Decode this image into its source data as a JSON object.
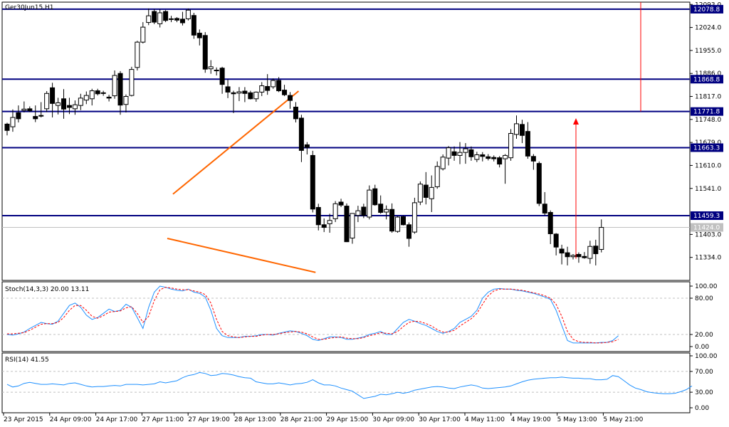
{
  "chart_data": [
    {
      "type": "candlestick",
      "title": "Ger30Jun15,H1",
      "ylim": [
        11265,
        12100
      ],
      "y_ticks": [
        "12093.0",
        "12024.0",
        "11955.0",
        "11886.0",
        "11817.0",
        "11748.0",
        "11679.0",
        "11610.0",
        "11541.0",
        "11403.0",
        "11334.0"
      ],
      "x_ticks": [
        "23 Apr 2015",
        "24 Apr 09:00",
        "24 Apr 17:00",
        "27 Apr 11:00",
        "27 Apr 19:00",
        "28 Apr 13:00",
        "28 Apr 21:00",
        "29 Apr 15:00",
        "30 Apr 09:00",
        "30 Apr 17:00",
        "4 May 11:00",
        "4 May 19:00",
        "5 May 13:00",
        "5 May 21:00"
      ],
      "levels": [
        {
          "value": 12078.8,
          "label": "12078.8"
        },
        {
          "value": 11868.8,
          "label": "11868.8"
        },
        {
          "value": 11771.8,
          "label": "11771.8"
        },
        {
          "value": 11663.3,
          "label": "11663.3"
        },
        {
          "value": 11459.3,
          "label": "11459.3"
        }
      ],
      "current_price": "11424.0",
      "colors": {
        "level": "#000080",
        "trend": "#ff6600",
        "arrow": "#ff0000",
        "grid": "#c0c0c0"
      },
      "trendlines": [
        {
          "from": [
            29.3,
            11524
          ],
          "to": [
            51.5,
            11833
          ]
        },
        {
          "from": [
            28.3,
            11391
          ],
          "to": [
            54.5,
            11289
          ]
        }
      ],
      "candles": [
        [
          11734,
          11738,
          11700,
          11715
        ],
        [
          11726,
          11778,
          11711,
          11754
        ],
        [
          11768,
          11790,
          11739,
          11750
        ],
        [
          11775,
          11802,
          11769,
          11779
        ],
        [
          11780,
          11787,
          11770,
          11774
        ],
        [
          11757,
          11790,
          11740,
          11750
        ],
        [
          11760,
          11800,
          11754,
          11760
        ],
        [
          11780,
          11833,
          11770,
          11826
        ],
        [
          11843,
          11858,
          11754,
          11796
        ],
        [
          11790,
          11813,
          11763,
          11798
        ],
        [
          11810,
          11839,
          11750,
          11779
        ],
        [
          11790,
          11813,
          11764,
          11784
        ],
        [
          11780,
          11805,
          11762,
          11792
        ],
        [
          11790,
          11825,
          11776,
          11812
        ],
        [
          11806,
          11832,
          11794,
          11820
        ],
        [
          11810,
          11840,
          11790,
          11834
        ],
        [
          11834,
          11840,
          11820,
          11825
        ],
        [
          11828,
          11834,
          11819,
          11826
        ],
        [
          11815,
          11822,
          11802,
          11812
        ],
        [
          11819,
          11895,
          11810,
          11880
        ],
        [
          11886,
          11893,
          11762,
          11791
        ],
        [
          11793,
          11823,
          11769,
          11817
        ],
        [
          11820,
          11906,
          11817,
          11898
        ],
        [
          11904,
          11984,
          11895,
          11980
        ],
        [
          11980,
          12040,
          11976,
          12025
        ],
        [
          12039,
          12081,
          12031,
          12059
        ],
        [
          12072,
          12079,
          12034,
          12040
        ],
        [
          12035,
          12078,
          12024,
          12068
        ],
        [
          12072,
          12076,
          12040,
          12045
        ],
        [
          12048,
          12059,
          12040,
          12050
        ],
        [
          12051,
          12055,
          12040,
          12046
        ],
        [
          12049,
          12071,
          12030,
          12038
        ],
        [
          12050,
          12081,
          12045,
          12076
        ],
        [
          12060,
          12068,
          11990,
          12001
        ],
        [
          12007,
          12018,
          11970,
          11993
        ],
        [
          12000,
          12010,
          11888,
          11899
        ],
        [
          11900,
          11926,
          11885,
          11906
        ],
        [
          11896,
          11904,
          11880,
          11895
        ],
        [
          11902,
          11906,
          11825,
          11853
        ],
        [
          11846,
          11868,
          11812,
          11830
        ],
        [
          11828,
          11834,
          11767,
          11825
        ],
        [
          11827,
          11845,
          11803,
          11831
        ],
        [
          11833,
          11845,
          11800,
          11826
        ],
        [
          11828,
          11834,
          11808,
          11810
        ],
        [
          11810,
          11832,
          11801,
          11830
        ],
        [
          11830,
          11860,
          11818,
          11849
        ],
        [
          11847,
          11884,
          11822,
          11835
        ],
        [
          11846,
          11871,
          11840,
          11865
        ],
        [
          11865,
          11875,
          11830,
          11834
        ],
        [
          11836,
          11852,
          11818,
          11822
        ],
        [
          11820,
          11830,
          11780,
          11805
        ],
        [
          11785,
          11800,
          11739,
          11750
        ],
        [
          11752,
          11762,
          11620,
          11655
        ],
        [
          11672,
          11680,
          11643,
          11664
        ],
        [
          11640,
          11654,
          11469,
          11479
        ],
        [
          11484,
          11495,
          11415,
          11432
        ],
        [
          11432,
          11451,
          11410,
          11424
        ],
        [
          11435,
          11465,
          11408,
          11445
        ],
        [
          11450,
          11503,
          11440,
          11495
        ],
        [
          11500,
          11510,
          11485,
          11491
        ],
        [
          11488,
          11496,
          11380,
          11381
        ],
        [
          11392,
          11467,
          11375,
          11466
        ],
        [
          11460,
          11489,
          11440,
          11474
        ],
        [
          11485,
          11495,
          11452,
          11460
        ],
        [
          11455,
          11550,
          11448,
          11536
        ],
        [
          11540,
          11552,
          11489,
          11492
        ],
        [
          11494,
          11520,
          11465,
          11469
        ],
        [
          11470,
          11490,
          11448,
          11478
        ],
        [
          11478,
          11496,
          11408,
          11413
        ],
        [
          11412,
          11458,
          11408,
          11455
        ],
        [
          11456,
          11460,
          11430,
          11432
        ],
        [
          11432,
          11439,
          11366,
          11391
        ],
        [
          11410,
          11513,
          11405,
          11498
        ],
        [
          11500,
          11562,
          11491,
          11554
        ],
        [
          11551,
          11590,
          11493,
          11514
        ],
        [
          11510,
          11580,
          11470,
          11544
        ],
        [
          11546,
          11622,
          11540,
          11607
        ],
        [
          11600,
          11643,
          11595,
          11635
        ],
        [
          11632,
          11668,
          11610,
          11663
        ],
        [
          11651,
          11667,
          11624,
          11640
        ],
        [
          11640,
          11680,
          11614,
          11649
        ],
        [
          11649,
          11677,
          11615,
          11660
        ],
        [
          11657,
          11667,
          11624,
          11636
        ],
        [
          11628,
          11651,
          11620,
          11642
        ],
        [
          11642,
          11650,
          11622,
          11637
        ],
        [
          11636,
          11644,
          11625,
          11631
        ],
        [
          11634,
          11640,
          11622,
          11630
        ],
        [
          11633,
          11638,
          11604,
          11614
        ],
        [
          11630,
          11644,
          11555,
          11640
        ],
        [
          11633,
          11719,
          11624,
          11706
        ],
        [
          11703,
          11760,
          11690,
          11735
        ],
        [
          11733,
          11747,
          11677,
          11700
        ],
        [
          11712,
          11740,
          11630,
          11638
        ],
        [
          11637,
          11644,
          11597,
          11623
        ],
        [
          11616,
          11622,
          11488,
          11496
        ],
        [
          11494,
          11530,
          11460,
          11467
        ],
        [
          11469,
          11475,
          11374,
          11405
        ],
        [
          11404,
          11407,
          11340,
          11365
        ],
        [
          11359,
          11372,
          11313,
          11347
        ],
        [
          11348,
          11366,
          11310,
          11336
        ],
        [
          11336,
          11344,
          11328,
          11340
        ],
        [
          11343,
          11349,
          11318,
          11336
        ],
        [
          11337,
          11350,
          11330,
          11333
        ],
        [
          11331,
          11384,
          11315,
          11367
        ],
        [
          11368,
          11387,
          11310,
          11345
        ],
        [
          11358,
          11448,
          11349,
          11424
        ]
      ]
    },
    {
      "type": "line",
      "title": "Stoch(14,3,3) 20.00 13.11",
      "ylim": [
        0,
        100
      ],
      "y_ticks": [
        "100.00",
        "80.00",
        "20.00",
        "0.00"
      ],
      "levels": [
        80,
        20
      ],
      "series": [
        {
          "values": [
            20,
            19,
            21,
            24,
            30,
            35,
            40,
            38,
            37,
            42,
            55,
            68,
            72,
            65,
            52,
            45,
            48,
            55,
            62,
            58,
            60,
            70,
            65,
            48,
            30,
            65,
            90,
            100,
            98,
            95,
            93,
            92,
            95,
            90,
            88,
            82,
            60,
            30,
            18,
            15,
            15,
            15,
            17,
            17,
            18,
            20,
            20,
            19,
            22,
            24,
            26,
            25,
            22,
            18,
            12,
            10,
            13,
            16,
            16,
            15,
            12,
            12,
            14,
            16,
            20,
            22,
            25,
            20,
            20,
            30,
            40,
            45,
            42,
            38,
            35,
            30,
            25,
            22,
            25,
            30,
            40,
            45,
            50,
            60,
            80,
            90,
            95,
            96,
            95,
            95,
            93,
            92,
            90,
            88,
            85,
            82,
            78,
            60,
            35,
            10,
            6,
            6,
            6,
            6,
            6,
            7,
            7,
            10,
            18
          ]
        },
        {
          "values": [
            21,
            21,
            22,
            23,
            27,
            32,
            37,
            38,
            38,
            40,
            48,
            60,
            68,
            68,
            60,
            50,
            47,
            51,
            57,
            58,
            59,
            64,
            66,
            55,
            40,
            50,
            76,
            94,
            98,
            97,
            95,
            94,
            94,
            92,
            90,
            86,
            72,
            45,
            25,
            18,
            16,
            15,
            16,
            17,
            17,
            19,
            20,
            20,
            21,
            23,
            24,
            25,
            24,
            21,
            16,
            12,
            12,
            14,
            15,
            16,
            14,
            13,
            13,
            15,
            18,
            20,
            23,
            22,
            21,
            25,
            33,
            40,
            42,
            41,
            38,
            34,
            28,
            24,
            24,
            27,
            34,
            40,
            46,
            55,
            70,
            84,
            92,
            95,
            95,
            95,
            94,
            93,
            91,
            89,
            87,
            84,
            80,
            70,
            50,
            25,
            12,
            8,
            7,
            7,
            6,
            6,
            7,
            8,
            12
          ]
        }
      ]
    },
    {
      "type": "line",
      "title": "RSI(14) 41.55",
      "ylim": [
        0,
        100
      ],
      "y_ticks": [
        "100.00",
        "70.00",
        "30.00",
        "0.00"
      ],
      "levels": [
        70,
        30
      ],
      "series": [
        {
          "values": [
            45,
            40,
            42,
            47,
            49,
            47,
            45,
            45,
            46,
            45,
            44,
            47,
            48,
            45,
            42,
            40,
            41,
            41,
            42,
            43,
            42,
            45,
            45,
            45,
            44,
            45,
            46,
            50,
            48,
            50,
            52,
            58,
            62,
            64,
            68,
            66,
            62,
            63,
            66,
            65,
            63,
            60,
            58,
            57,
            50,
            48,
            46,
            46,
            48,
            46,
            44,
            46,
            47,
            49,
            54,
            48,
            44,
            44,
            42,
            38,
            35,
            32,
            25,
            18,
            20,
            22,
            26,
            25,
            27,
            30,
            28,
            30,
            34,
            36,
            38,
            40,
            41,
            40,
            38,
            37,
            40,
            42,
            44,
            42,
            38,
            37,
            38,
            39,
            40,
            42,
            46,
            50,
            53,
            55,
            56,
            57,
            58,
            58,
            59,
            58,
            57,
            57,
            56,
            56,
            54,
            54,
            55,
            62,
            60,
            52,
            44,
            38,
            35,
            31,
            29,
            28,
            27,
            27,
            28,
            31,
            35,
            42
          ]
        }
      ]
    }
  ]
}
